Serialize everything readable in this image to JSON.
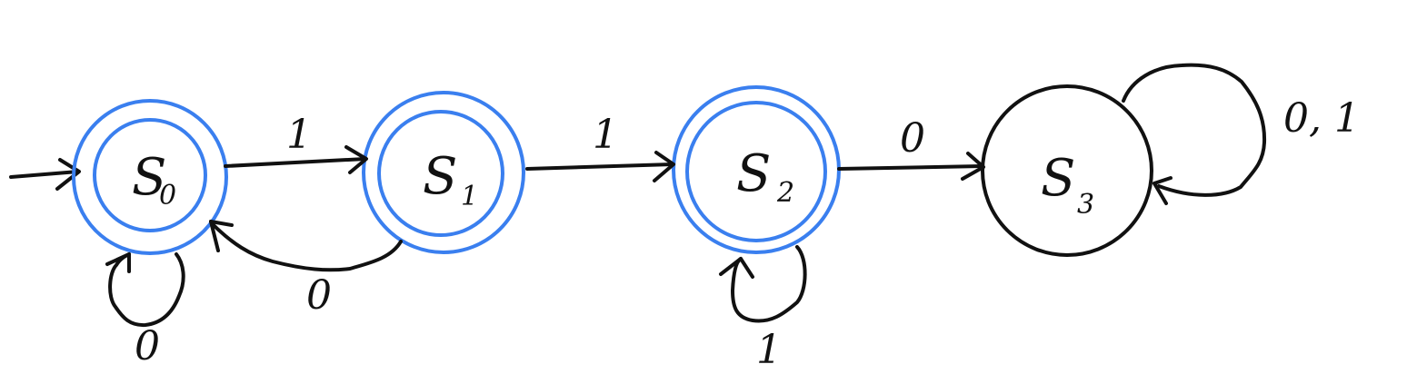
{
  "colors": {
    "accepting": "#3a7fef",
    "non_accepting": "#111111",
    "ink": "#111111"
  },
  "states": {
    "s0": {
      "letter": "S",
      "sub": "0",
      "accepting": true,
      "start": true
    },
    "s1": {
      "letter": "S",
      "sub": "1",
      "accepting": true,
      "start": false
    },
    "s2": {
      "letter": "S",
      "sub": "2",
      "accepting": true,
      "start": false
    },
    "s3": {
      "letter": "S",
      "sub": "3",
      "accepting": false,
      "start": false
    }
  },
  "transitions": {
    "s0_to_s1": {
      "from": "s0",
      "to": "s1",
      "label": "1"
    },
    "s1_to_s0": {
      "from": "s1",
      "to": "s0",
      "label": "0"
    },
    "s0_loop": {
      "from": "s0",
      "to": "s0",
      "label": "0"
    },
    "s1_to_s2": {
      "from": "s1",
      "to": "s2",
      "label": "1"
    },
    "s2_loop": {
      "from": "s2",
      "to": "s2",
      "label": "1"
    },
    "s2_to_s3": {
      "from": "s2",
      "to": "s3",
      "label": "0"
    },
    "s3_loop": {
      "from": "s3",
      "to": "s3",
      "label": "0, 1"
    }
  }
}
